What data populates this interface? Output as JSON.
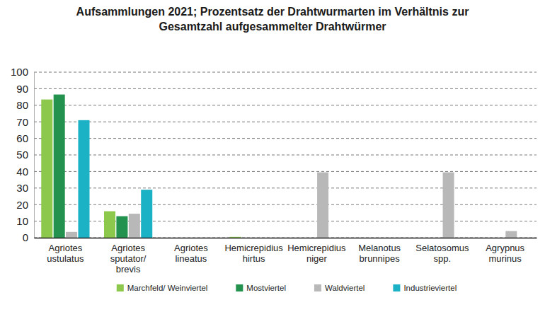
{
  "chart_data": {
    "type": "bar",
    "title": "Aufsammlungen 2021; Prozentsatz der Drahtwurmarten im Verhältnis zur\nGesamtzahl aufgesammelter Drahtwürmer",
    "categories": [
      "Agriotes\nustulatus",
      "Agriotes\nsputator/\nbrevis",
      "Agriotes\nlineatus",
      "Hemicrepidius\nhirtus",
      "Hemicrepidius\nniger",
      "Melanotus\nbrunnipes",
      "Selatosomus\nspp.",
      "Agrypnus\nmurinus"
    ],
    "series": [
      {
        "name": "Marchfeld/ Weinviertel",
        "color": "#8cc84b",
        "values": [
          83.5,
          16,
          0,
          0.5,
          0,
          0,
          0,
          0
        ]
      },
      {
        "name": "Mostviertel",
        "color": "#23924f",
        "values": [
          86.5,
          13,
          0,
          0,
          0,
          0,
          0,
          0
        ]
      },
      {
        "name": "Waldviertel",
        "color": "#b8b8b8",
        "values": [
          3.5,
          14.5,
          0,
          0,
          39.5,
          0,
          39.5,
          4
        ]
      },
      {
        "name": "Industrieviertel",
        "color": "#1cb2c6",
        "values": [
          71,
          29,
          0,
          0,
          0,
          0,
          0,
          0
        ]
      }
    ],
    "ylim": [
      0,
      100
    ],
    "yticks": [
      0,
      10,
      20,
      30,
      40,
      50,
      60,
      70,
      80,
      90,
      100
    ],
    "grid": true,
    "legend": "bottom"
  }
}
